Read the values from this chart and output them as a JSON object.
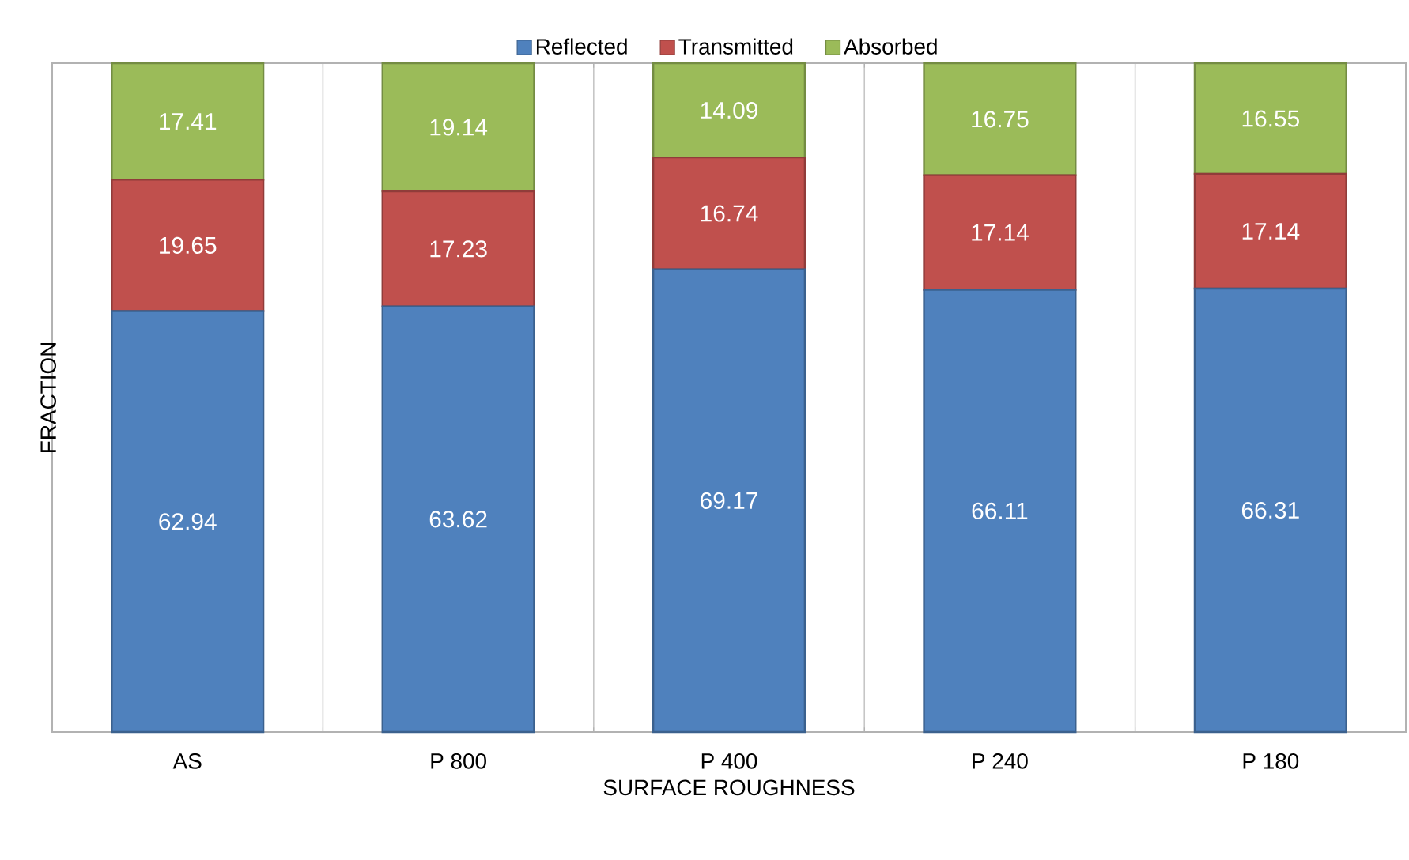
{
  "chart_data": {
    "type": "bar",
    "stacked": true,
    "xlabel": "SURFACE ROUGHNESS",
    "ylabel": "FRACTION",
    "categories": [
      "AS",
      "P 800",
      "P 400",
      "P 240",
      "P 180"
    ],
    "series": [
      {
        "name": "Reflected",
        "color": "#4f81bd",
        "values": [
          62.94,
          63.62,
          69.17,
          66.11,
          66.31
        ]
      },
      {
        "name": "Transmitted",
        "color": "#c0504d",
        "values": [
          19.65,
          17.23,
          16.74,
          17.14,
          17.14
        ]
      },
      {
        "name": "Absorbed",
        "color": "#9bbb59",
        "values": [
          17.41,
          19.14,
          14.09,
          16.75,
          16.55
        ]
      }
    ],
    "tick_labels": "x",
    "data_labels": true,
    "grid": "x",
    "legend": "top"
  }
}
